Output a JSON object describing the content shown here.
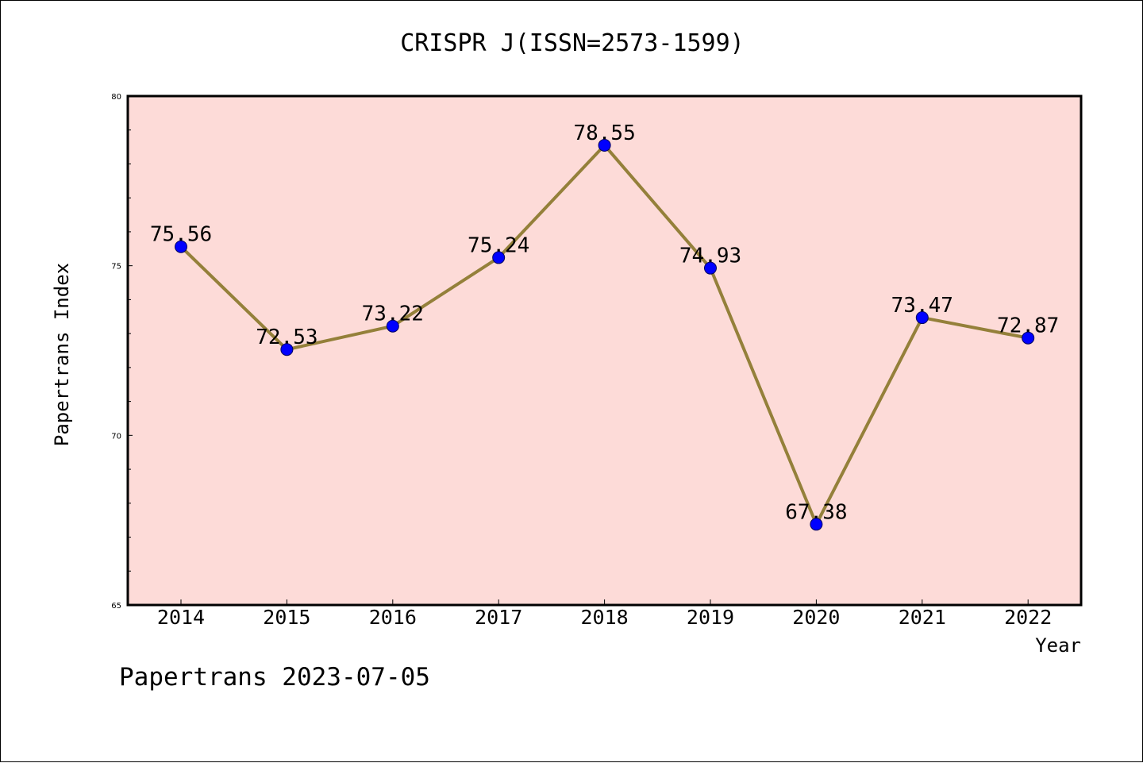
{
  "chart_data": {
    "type": "line",
    "title": "CRISPR J(ISSN=2573-1599)",
    "xlabel": "Year",
    "ylabel": "Papertrans Index",
    "categories": [
      "2014",
      "2015",
      "2016",
      "2017",
      "2018",
      "2019",
      "2020",
      "2021",
      "2022"
    ],
    "series": [
      {
        "values": [
          75.56,
          72.53,
          73.22,
          75.24,
          78.55,
          74.93,
          67.38,
          73.47,
          72.87
        ],
        "data_labels": [
          "75.56",
          "72.53",
          "73.22",
          "75.24",
          "78.55",
          "74.93",
          "67.38",
          "73.47",
          "72.87"
        ]
      }
    ],
    "ylim": [
      65,
      80
    ],
    "yticks": [
      "65",
      "70",
      "75",
      "80"
    ],
    "grid": false,
    "legend": "none",
    "colors": {
      "plot_background": "#fddbd8",
      "line": "#94803a",
      "marker": "#0000ff",
      "axis": "#000000"
    }
  },
  "footer": {
    "note": "Papertrans 2023-07-05"
  }
}
